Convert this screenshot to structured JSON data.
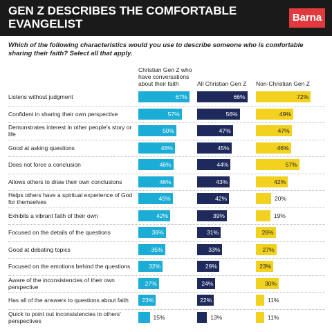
{
  "chart_data": {
    "type": "bar",
    "title": "GEN Z DESCRIBES THE COMFORTABLE EVANGELIST",
    "brand": "Barna",
    "subtitle": "Which of the following characteristics would you use to describe someone who is comfortable sharing their faith? Select all that apply.",
    "categories": [
      "Listens without judgment",
      "Confident in sharing their own perspective",
      "Demonstrates interest in other people's story or life",
      "Good at asking questions",
      "Does not force a conclusion",
      "Allows others to draw their own conclusions",
      "Helps others have a spiritual experience of God for themselves",
      "Exhibits a vibrant faith of their own",
      "Focused on the details of the questions",
      "Good at debating topics",
      "Focused on the emotions behind the questions",
      "Aware of the inconsistencies of their own perspective",
      "Has all of the answers to questions about faith",
      "Quick to point out inconsistencies in others' perspectives"
    ],
    "series": [
      {
        "name": "Christian Gen Z who have conversations about their faith",
        "color": "#1badd6",
        "values": [
          67,
          57,
          50,
          48,
          46,
          46,
          45,
          42,
          36,
          35,
          32,
          27,
          23,
          15
        ],
        "value_labels": [
          "67%",
          "57%",
          "50%",
          "48%",
          "46%",
          "46%",
          "45%",
          "42%",
          "36%",
          "35%",
          "32%",
          "27%",
          "23%",
          "15%"
        ]
      },
      {
        "name": "All Christian Gen Z",
        "color": "#1f2a5c",
        "values": [
          66,
          56,
          47,
          45,
          44,
          43,
          42,
          39,
          31,
          33,
          29,
          24,
          22,
          13
        ],
        "value_labels": [
          "66%",
          "56%",
          "47%",
          "45%",
          "44%",
          "43%",
          "42%",
          "39%",
          "31%",
          "33%",
          "29%",
          "24%",
          "22%",
          "13%"
        ]
      },
      {
        "name": "Non-Christian Gen Z",
        "color": "#f2d11f",
        "values": [
          72,
          49,
          47,
          46,
          57,
          42,
          20,
          19,
          26,
          27,
          23,
          30,
          11,
          11
        ],
        "value_labels": [
          "72%",
          "49%",
          "47%",
          "46%",
          "57%",
          "42%",
          "20%",
          "19%",
          "26%",
          "27%",
          "23%",
          "30%",
          "11%",
          "11%"
        ]
      }
    ]
  }
}
